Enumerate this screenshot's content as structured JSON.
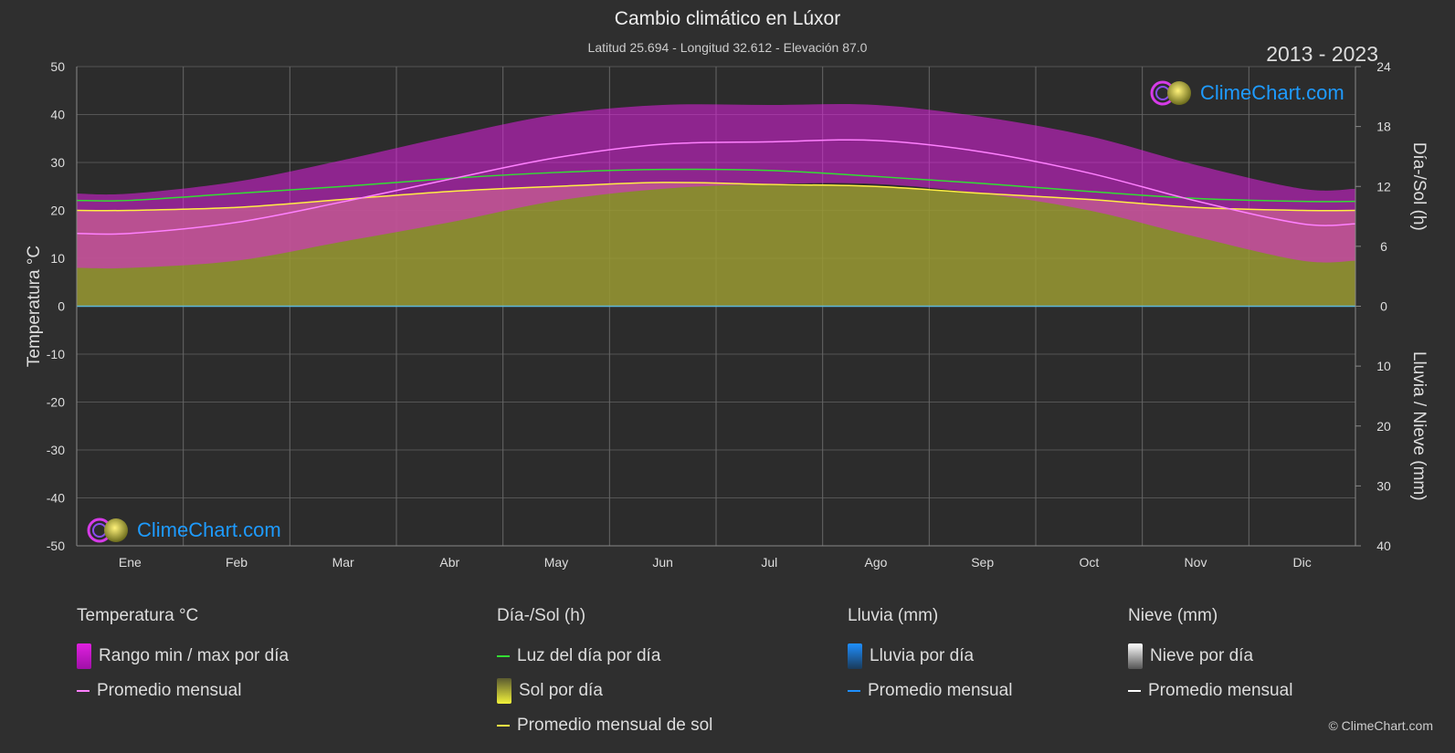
{
  "header": {
    "title": "Cambio climático en Lúxor",
    "subtitle": "Latitud 25.694 - Longitud 32.612 - Elevación 87.0",
    "years": "2013 - 2023",
    "copyright": "© ClimeChart.com",
    "logo_text": "ClimeChart.com"
  },
  "legend": {
    "temperature": {
      "header": "Temperatura °C",
      "items": [
        "Rango min / max por día",
        "Promedio mensual"
      ]
    },
    "daylight": {
      "header": "Día-/Sol (h)",
      "items": [
        "Luz del día por día",
        "Sol por día",
        "Promedio mensual de sol"
      ]
    },
    "rain": {
      "header": "Lluvia (mm)",
      "items": [
        "Lluvia por día",
        "Promedio mensual"
      ]
    },
    "snow": {
      "header": "Nieve (mm)",
      "items": [
        "Nieve por día",
        "Promedio mensual"
      ]
    }
  },
  "colors": {
    "background": "#2f2f2f",
    "temp_range": "#e020e0",
    "temp_avg": "#ff80ff",
    "daylight": "#33dd33",
    "sunshine_fill": "#9a9a32",
    "sunshine_avg": "#ffee44",
    "rain": "#1e8fff",
    "snow": "#ffffff",
    "grid": "#555555"
  },
  "chart_data": {
    "type": "area",
    "x_categories": [
      "Ene",
      "Feb",
      "Mar",
      "Abr",
      "May",
      "Jun",
      "Jul",
      "Ago",
      "Sep",
      "Oct",
      "Nov",
      "Dic"
    ],
    "left_axis": {
      "label": "Temperatura °C",
      "min": -50,
      "max": 50,
      "ticks": [
        50,
        40,
        30,
        20,
        10,
        0,
        -10,
        -20,
        -30,
        -40,
        -50
      ]
    },
    "right_axis_top": {
      "label": "Día-/Sol (h)",
      "min": 0,
      "max": 24,
      "ticks": [
        24,
        18,
        12,
        6,
        0
      ]
    },
    "right_axis_bottom": {
      "label": "Lluvia / Nieve (mm)",
      "min": 0,
      "max": 40,
      "ticks": [
        0,
        10,
        20,
        30,
        40
      ]
    },
    "series": [
      {
        "name": "Promedio mensual",
        "kind": "temp_avg",
        "axis": "temp",
        "values": [
          15.2,
          17.5,
          21.8,
          26.5,
          31.0,
          33.8,
          34.3,
          34.6,
          32.2,
          27.8,
          22.0,
          17.2
        ]
      },
      {
        "name": "Rango min / max por día",
        "kind": "temp_max",
        "axis": "temp",
        "values": [
          23.5,
          26.0,
          30.5,
          35.5,
          40.0,
          42.0,
          42.0,
          42.0,
          39.5,
          35.5,
          29.5,
          24.5
        ]
      },
      {
        "kind": "temp_min",
        "axis": "temp",
        "values": [
          8.0,
          9.5,
          13.5,
          17.5,
          22.0,
          24.5,
          25.5,
          25.5,
          23.5,
          20.0,
          14.5,
          9.5
        ]
      },
      {
        "name": "Luz del día por día",
        "kind": "daylight",
        "axis": "hours",
        "values": [
          10.6,
          11.3,
          12.0,
          12.8,
          13.4,
          13.7,
          13.6,
          13.0,
          12.3,
          11.5,
          10.8,
          10.5
        ]
      },
      {
        "name": "Promedio mensual de sol",
        "kind": "sunshine",
        "axis": "hours",
        "values": [
          9.6,
          9.9,
          10.7,
          11.5,
          12.0,
          12.4,
          12.2,
          12.0,
          11.3,
          10.7,
          9.9,
          9.6
        ]
      }
    ],
    "grid": true
  }
}
